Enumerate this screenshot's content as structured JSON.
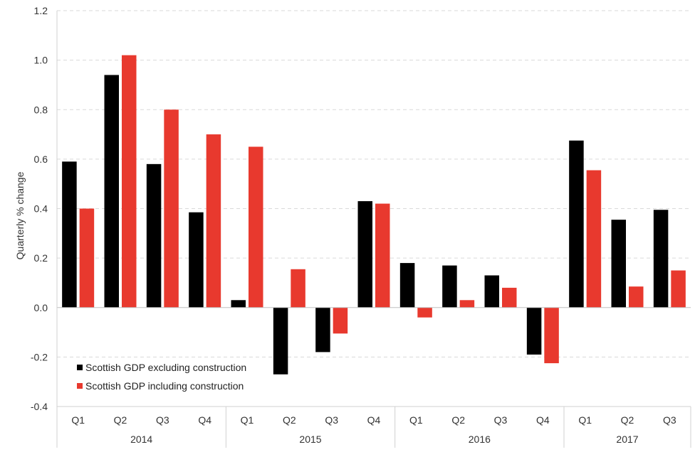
{
  "chart_data": {
    "type": "bar",
    "title": "",
    "xlabel": "",
    "ylabel": "Quarterly  % change",
    "ylim": [
      -0.4,
      1.2
    ],
    "yticks": [
      "1.2",
      "1.0",
      "0.8",
      "0.6",
      "0.4",
      "0.2",
      "0.0",
      "-0.2",
      "-0.4"
    ],
    "grid": true,
    "legend_position": "bottom-left",
    "categories": [
      "Q1",
      "Q2",
      "Q3",
      "Q4",
      "Q1",
      "Q2",
      "Q3",
      "Q4",
      "Q1",
      "Q2",
      "Q3",
      "Q4",
      "Q1",
      "Q2",
      "Q3"
    ],
    "groups": [
      {
        "label": "2014",
        "count": 4
      },
      {
        "label": "2015",
        "count": 4
      },
      {
        "label": "2016",
        "count": 4
      },
      {
        "label": "2017",
        "count": 3
      }
    ],
    "series": [
      {
        "name": "Scottish GDP excluding construction",
        "color": "#000000",
        "values": [
          0.59,
          0.94,
          0.58,
          0.385,
          0.03,
          -0.27,
          -0.18,
          0.43,
          0.18,
          0.17,
          0.13,
          -0.19,
          0.675,
          0.355,
          0.395
        ]
      },
      {
        "name": "Scottish GDP including construction",
        "color": "#e8392e",
        "values": [
          0.4,
          1.02,
          0.8,
          0.7,
          0.65,
          0.155,
          -0.105,
          0.42,
          -0.04,
          0.03,
          0.08,
          -0.225,
          0.555,
          0.085,
          0.15
        ]
      }
    ]
  }
}
